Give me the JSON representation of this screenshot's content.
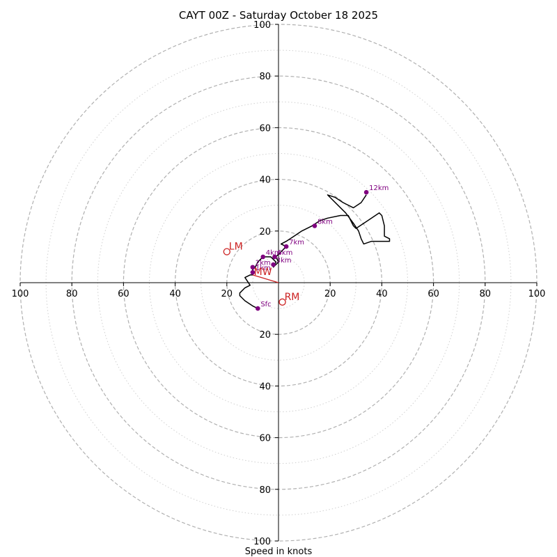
{
  "chart_data": {
    "type": "hodograph",
    "title": "CAYT 00Z - Saturday October 18 2025",
    "xlabel": "Speed in knots",
    "range": [
      -100,
      100
    ],
    "ring_major": [
      20,
      40,
      60,
      80,
      100
    ],
    "ring_minor": [
      10,
      30,
      50,
      70,
      90
    ],
    "tick_values": [
      100,
      80,
      60,
      40,
      20
    ],
    "colors": {
      "trace": "#000000",
      "height_marker": "#800080",
      "storm_motion": "#cc2222",
      "ring": "#b0b0b0",
      "ring_minor": "#cfcfcf"
    },
    "hodograph_trace": [
      [
        -8,
        -10
      ],
      [
        -10,
        -9
      ],
      [
        -13,
        -7
      ],
      [
        -15,
        -5
      ],
      [
        -15,
        -4
      ],
      [
        -14,
        -3
      ],
      [
        -15,
        -4
      ],
      [
        -13,
        -2
      ],
      [
        -11,
        -1
      ],
      [
        -13,
        2
      ],
      [
        -11,
        3
      ],
      [
        -10,
        3
      ],
      [
        -10,
        4
      ],
      [
        -10,
        5
      ],
      [
        -9,
        6
      ],
      [
        -8,
        8
      ],
      [
        -6,
        10
      ],
      [
        -3,
        10
      ],
      [
        -1,
        8
      ],
      [
        -2,
        6
      ],
      [
        -1,
        7
      ],
      [
        0,
        8
      ],
      [
        -1,
        10
      ],
      [
        0,
        11
      ],
      [
        1,
        12
      ],
      [
        2,
        13
      ],
      [
        3,
        14
      ],
      [
        1,
        15
      ],
      [
        3,
        16
      ],
      [
        6,
        18
      ],
      [
        9,
        20
      ],
      [
        13,
        22
      ],
      [
        16,
        24
      ],
      [
        19,
        25
      ],
      [
        24,
        26
      ],
      [
        27,
        26
      ],
      [
        28,
        24
      ],
      [
        29,
        22
      ],
      [
        30,
        21
      ],
      [
        33,
        23
      ],
      [
        36,
        25
      ],
      [
        39,
        27
      ],
      [
        40,
        26
      ],
      [
        41,
        22
      ],
      [
        41,
        18
      ],
      [
        43,
        17
      ],
      [
        43,
        16
      ],
      [
        40,
        16
      ],
      [
        36,
        16
      ],
      [
        33,
        15
      ],
      [
        32,
        17
      ],
      [
        31,
        20
      ],
      [
        29,
        23
      ],
      [
        26,
        27
      ],
      [
        23,
        30
      ],
      [
        20,
        33
      ],
      [
        19,
        34
      ],
      [
        22,
        33
      ],
      [
        25,
        31
      ],
      [
        29,
        29
      ],
      [
        32,
        31
      ],
      [
        34,
        34
      ]
    ],
    "height_markers": [
      {
        "label": "Sfc",
        "u": -8,
        "v": -10
      },
      {
        "label": "1km",
        "u": -10,
        "v": 4
      },
      {
        "label": "2km",
        "u": -10,
        "v": 6
      },
      {
        "label": "3km",
        "u": -2,
        "v": 7
      },
      {
        "label": "4km",
        "u": -6,
        "v": 10
      },
      {
        "label": "6km",
        "u": -1.5,
        "v": 10
      },
      {
        "label": "7km",
        "u": 3,
        "v": 14
      },
      {
        "label": "8km",
        "u": 14,
        "v": 22
      },
      {
        "label": "12km",
        "u": 34,
        "v": 35
      }
    ],
    "storm_motion": [
      {
        "label": "LM",
        "u": -20,
        "v": 12
      },
      {
        "label": "RM",
        "u": 1.5,
        "v": -7.5
      }
    ],
    "mean_wind": {
      "label": "MW",
      "u": -9,
      "v": 4
    },
    "mean_wind_line": [
      [
        -10,
        3
      ],
      [
        0,
        0
      ]
    ]
  }
}
